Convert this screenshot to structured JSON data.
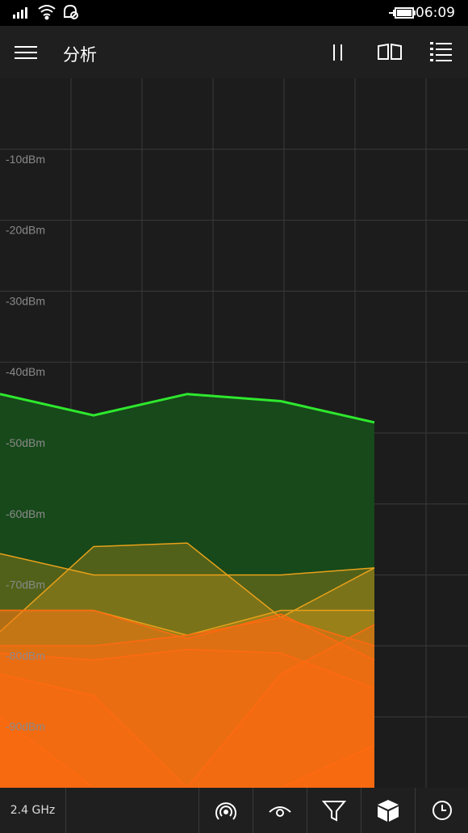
{
  "status": {
    "time": "06:09",
    "icons": [
      "signal-icon",
      "wifi-icon",
      "quiet-hours-icon",
      "battery-charging-icon"
    ]
  },
  "header": {
    "title": "分析",
    "menu_icon": "hamburger-icon",
    "actions": [
      "pause-icon",
      "reading-view-icon",
      "list-view-icon"
    ]
  },
  "bottom": {
    "band": "2.4 GHz",
    "buttons": [
      "hotspot-icon",
      "eye-icon",
      "filter-icon",
      "cube-icon",
      "clock-icon"
    ]
  },
  "colors": {
    "strong": "#2ee82e",
    "strong_fill": "#17491a",
    "mid": "#e9a11a",
    "low": "#ff6a10",
    "grid": "#3a3a3a"
  },
  "chart_data": {
    "type": "area",
    "ylabels": [
      "-10dBm",
      "-20dBm",
      "-30dBm",
      "-40dBm",
      "-50dBm",
      "-60dBm",
      "-70dBm",
      "-80dBm",
      "-90dBm"
    ],
    "ylim": [
      -100,
      0
    ],
    "x": [
      0,
      1,
      2,
      3,
      4
    ],
    "series": [
      {
        "values": [
          -44.5,
          -47.5,
          -44.5,
          -45.5,
          -48.5
        ],
        "level": "strong"
      },
      {
        "values": [
          -67,
          -70,
          -70,
          -70,
          -69
        ],
        "level": "mid"
      },
      {
        "values": [
          -78,
          -66,
          -65.5,
          -76,
          -69
        ],
        "level": "mid"
      },
      {
        "values": [
          -75,
          -75,
          -78.5,
          -75,
          -75
        ],
        "level": "mid"
      },
      {
        "values": [
          -75,
          -75,
          -79,
          -75.5,
          -82
        ],
        "level": "low"
      },
      {
        "values": [
          -80,
          -80,
          -78.5,
          -76,
          -80
        ],
        "level": "low"
      },
      {
        "values": [
          -81,
          -82,
          -80.5,
          -81,
          -86
        ],
        "level": "low"
      },
      {
        "values": [
          -84,
          -87,
          -100,
          -84,
          -77
        ],
        "level": "low"
      },
      {
        "values": [
          -90,
          -100,
          -100,
          -100,
          -94
        ],
        "level": "low"
      }
    ]
  }
}
